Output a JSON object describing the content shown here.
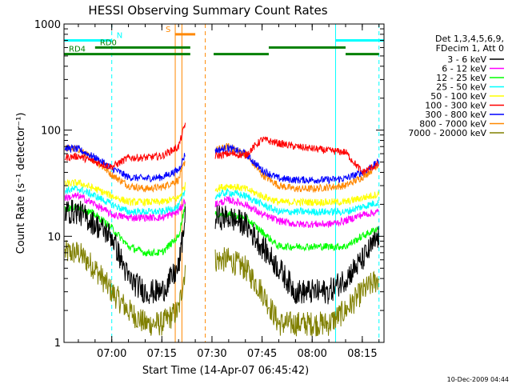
{
  "chart_data": {
    "type": "line",
    "title": "HESSI Observing Summary Count Rates",
    "xlabel": "Start Time (14-Apr-07 06:45:42)",
    "ylabel": "Count Rate (s⁻¹ detector⁻¹)",
    "yscale": "log",
    "ylim": [
      1,
      1000
    ],
    "xlim": [
      "06:45:42",
      "08:21:30"
    ],
    "grid": false,
    "x_ticks": [
      "07:00",
      "07:15",
      "07:30",
      "07:45",
      "08:00",
      "08:15"
    ],
    "y_ticks": [
      "1",
      "10",
      "100",
      "1000"
    ],
    "legend_position": "right",
    "legend_header": [
      "Det 1,3,4,5,6,9,",
      "FDecim 1, Att 0"
    ],
    "data_gaps": [
      [
        "07:23:30",
        "07:30:30"
      ]
    ],
    "series": [
      {
        "name": "3 - 6 keV",
        "color": "#000000",
        "x": [
          "06:46",
          "06:50",
          "06:55",
          "07:00",
          "07:05",
          "07:10",
          "07:15",
          "07:20",
          "07:22",
          "07:31",
          "07:35",
          "07:40",
          "07:45",
          "07:50",
          "07:55",
          "08:00",
          "08:05",
          "08:10",
          "08:15",
          "08:20"
        ],
        "values": [
          17,
          17,
          13,
          10,
          4,
          3,
          3,
          5,
          15,
          15,
          15,
          13,
          8,
          5,
          3,
          3,
          3,
          4,
          6,
          10
        ]
      },
      {
        "name": "6 - 12 keV",
        "color": "#ff00ff",
        "x": [
          "06:46",
          "06:50",
          "06:55",
          "07:00",
          "07:05",
          "07:10",
          "07:15",
          "07:20",
          "07:22",
          "07:31",
          "07:35",
          "07:40",
          "07:45",
          "07:50",
          "07:55",
          "08:00",
          "08:05",
          "08:10",
          "08:15",
          "08:20"
        ],
        "values": [
          23,
          24,
          20,
          16,
          15,
          15,
          15,
          17,
          22,
          20,
          22,
          20,
          16,
          14,
          13,
          13,
          13,
          14,
          16,
          17
        ]
      },
      {
        "name": "12 - 25 keV",
        "color": "#00ff00",
        "x": [
          "06:46",
          "06:50",
          "06:55",
          "07:00",
          "07:05",
          "07:10",
          "07:15",
          "07:20",
          "07:22",
          "07:31",
          "07:35",
          "07:40",
          "07:45",
          "07:50",
          "07:55",
          "08:00",
          "08:05",
          "08:10",
          "08:15",
          "08:20"
        ],
        "values": [
          18,
          19,
          16,
          12,
          8,
          7,
          7,
          10,
          20,
          16,
          16,
          15,
          11,
          8,
          8,
          8,
          8,
          8,
          10,
          12
        ]
      },
      {
        "name": "25 - 50 keV",
        "color": "#00ffff",
        "x": [
          "06:46",
          "06:50",
          "06:55",
          "07:00",
          "07:05",
          "07:10",
          "07:15",
          "07:20",
          "07:22",
          "07:31",
          "07:35",
          "07:40",
          "07:45",
          "07:50",
          "07:55",
          "08:00",
          "08:05",
          "08:10",
          "08:15",
          "08:20"
        ],
        "values": [
          27,
          28,
          24,
          20,
          17,
          17,
          17,
          19,
          27,
          24,
          26,
          24,
          20,
          17,
          17,
          17,
          17,
          17,
          19,
          21
        ]
      },
      {
        "name": "50 - 100 keV",
        "color": "#ffff00",
        "x": [
          "06:46",
          "06:50",
          "06:55",
          "07:00",
          "07:05",
          "07:10",
          "07:15",
          "07:20",
          "07:22",
          "07:31",
          "07:35",
          "07:40",
          "07:45",
          "07:50",
          "07:55",
          "08:00",
          "08:05",
          "08:10",
          "08:15",
          "08:20"
        ],
        "values": [
          31,
          32,
          28,
          24,
          21,
          21,
          21,
          23,
          30,
          28,
          30,
          28,
          24,
          21,
          21,
          21,
          21,
          21,
          23,
          25
        ]
      },
      {
        "name": "100 - 300 keV",
        "color": "#ff0000",
        "x": [
          "06:46",
          "06:50",
          "06:55",
          "07:00",
          "07:05",
          "07:10",
          "07:15",
          "07:20",
          "07:22",
          "07:31",
          "07:35",
          "07:40",
          "07:45",
          "07:50",
          "07:55",
          "08:00",
          "08:05",
          "08:10",
          "08:15",
          "08:20"
        ],
        "values": [
          55,
          57,
          50,
          45,
          55,
          55,
          57,
          70,
          115,
          57,
          60,
          58,
          82,
          75,
          70,
          67,
          64,
          62,
          40,
          48
        ]
      },
      {
        "name": "300 - 800 keV",
        "color": "#0000ff",
        "x": [
          "06:46",
          "06:50",
          "06:55",
          "07:00",
          "07:05",
          "07:10",
          "07:15",
          "07:20",
          "07:22",
          "07:31",
          "07:35",
          "07:40",
          "07:45",
          "07:50",
          "07:55",
          "08:00",
          "08:05",
          "08:10",
          "08:15",
          "08:20"
        ],
        "values": [
          68,
          66,
          55,
          44,
          36,
          35,
          36,
          42,
          60,
          64,
          68,
          60,
          42,
          35,
          34,
          34,
          34,
          35,
          40,
          50
        ]
      },
      {
        "name": "800 - 7000 keV",
        "color": "#ff8800",
        "x": [
          "06:46",
          "06:50",
          "06:55",
          "07:00",
          "07:05",
          "07:10",
          "07:15",
          "07:20",
          "07:22",
          "07:31",
          "07:35",
          "07:40",
          "07:45",
          "07:50",
          "07:55",
          "08:00",
          "08:05",
          "08:10",
          "08:15",
          "08:20"
        ],
        "values": [
          68,
          66,
          52,
          38,
          30,
          28,
          29,
          34,
          52,
          65,
          70,
          60,
          38,
          30,
          28,
          28,
          29,
          30,
          36,
          48
        ]
      },
      {
        "name": "7000 - 20000 keV",
        "color": "#808000",
        "x": [
          "06:46",
          "06:50",
          "06:55",
          "07:00",
          "07:05",
          "07:10",
          "07:15",
          "07:20",
          "07:22",
          "07:31",
          "07:35",
          "07:40",
          "07:45",
          "07:50",
          "07:55",
          "08:00",
          "08:05",
          "08:10",
          "08:15",
          "08:20"
        ],
        "values": [
          7,
          7,
          5,
          3,
          2,
          1.5,
          1.5,
          2,
          5,
          6,
          6,
          5,
          3,
          1.5,
          1.5,
          1.5,
          1.5,
          2,
          3,
          4
        ]
      }
    ],
    "state_bars": [
      {
        "label": "N",
        "color": "#00ffff",
        "y": 700,
        "segments": [
          [
            "06:45:42",
            "07:00"
          ],
          [
            "08:07",
            "08:21:30"
          ]
        ]
      },
      {
        "label": "S",
        "color": "#ff8800",
        "y": 800,
        "segments": [
          [
            "07:19",
            "07:25"
          ]
        ]
      },
      {
        "label": "RD0",
        "color": "#008000",
        "y": 600,
        "segments": [
          [
            "06:55",
            "07:23:30"
          ]
        ]
      },
      {
        "label": "RD4",
        "color": "#008000",
        "y": 520,
        "segments": [
          [
            "06:45:42",
            "07:23:30"
          ],
          [
            "07:30:30",
            "07:47"
          ],
          [
            "08:10",
            "08:20"
          ]
        ]
      },
      {
        "label": "",
        "color": "#008000",
        "y": 600,
        "segments": [
          [
            "07:47",
            "08:10"
          ]
        ]
      }
    ],
    "vertical_markers": [
      {
        "x": "06:45:42",
        "color": "#00ffff",
        "style": "solid"
      },
      {
        "x": "07:00",
        "color": "#00ffff",
        "style": "dashed"
      },
      {
        "x": "07:19",
        "color": "#ff8800",
        "style": "solid"
      },
      {
        "x": "07:21",
        "color": "#ff8800",
        "style": "solid"
      },
      {
        "x": "07:28",
        "color": "#ff8800",
        "style": "dashed"
      },
      {
        "x": "08:07",
        "color": "#00ffff",
        "style": "solid"
      },
      {
        "x": "08:20",
        "color": "#00ffff",
        "style": "dashed"
      }
    ],
    "footer": "10-Dec-2009 04:44"
  }
}
